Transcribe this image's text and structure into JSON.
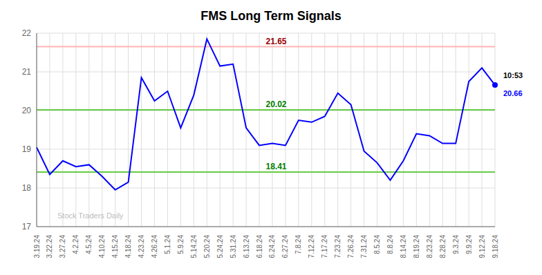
{
  "chart_data": {
    "type": "line",
    "title": "FMS Long Term Signals",
    "categories": [
      "3.19.24",
      "3.22.24",
      "3.27.24",
      "4.2.24",
      "4.5.24",
      "4.10.24",
      "4.15.24",
      "4.18.24",
      "4.23.24",
      "4.26.24",
      "5.1.24",
      "5.9.24",
      "5.14.24",
      "5.20.24",
      "5.24.24",
      "5.31.24",
      "6.13.24",
      "6.18.24",
      "6.24.24",
      "6.27.24",
      "7.8.24",
      "7.12.24",
      "7.17.24",
      "7.23.24",
      "7.26.24",
      "7.31.24",
      "8.5.24",
      "8.8.24",
      "8.14.24",
      "8.19.24",
      "8.23.24",
      "8.28.24",
      "9.3.24",
      "9.9.24",
      "9.12.24",
      "9.18.24"
    ],
    "values": [
      19.05,
      18.35,
      18.7,
      18.55,
      18.6,
      18.3,
      17.95,
      18.15,
      20.85,
      20.25,
      20.5,
      19.55,
      20.4,
      21.85,
      21.15,
      21.2,
      19.55,
      19.1,
      19.15,
      19.1,
      19.75,
      19.7,
      19.85,
      20.45,
      20.15,
      18.95,
      18.65,
      18.2,
      18.7,
      19.4,
      19.35,
      19.15,
      19.15,
      20.75,
      21.1,
      20.66
    ],
    "color": "blue",
    "ylim": [
      17,
      22
    ],
    "yticks": [
      17,
      18,
      19,
      20,
      21,
      22
    ],
    "grid": true,
    "reference_lines": [
      {
        "value": 21.65,
        "label": "21.65",
        "color": "#ffb3b3",
        "label_color": "#990000"
      },
      {
        "value": 20.02,
        "label": "20.02",
        "color": "#66cc44",
        "label_color": "green"
      },
      {
        "value": 18.41,
        "label": "18.41",
        "color": "#66cc44",
        "label_color": "green"
      }
    ],
    "annotations": [
      {
        "text": "10:53",
        "color": "black"
      },
      {
        "text": "20.66",
        "color": "blue"
      },
      {
        "text": "Stock Traders Daily",
        "color": "#bbbbbb"
      }
    ]
  }
}
